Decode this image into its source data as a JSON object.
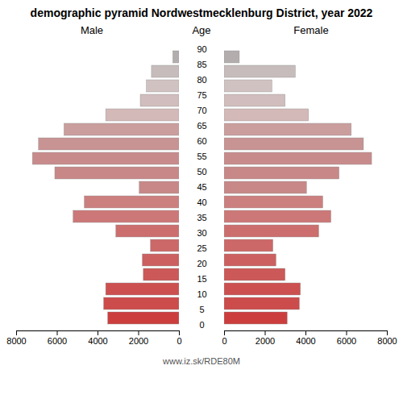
{
  "chart_data": {
    "type": "bar",
    "orientation": "horizontal",
    "title": "demographic pyramid Nordwestmecklenburg District, year 2022",
    "caption": "www.iz.sk/RDE80M",
    "y_label": "Age",
    "categories": [
      "90",
      "85",
      "80",
      "75",
      "70",
      "65",
      "60",
      "55",
      "50",
      "45",
      "40",
      "35",
      "30",
      "25",
      "20",
      "15",
      "10",
      "5",
      "0"
    ],
    "series": [
      {
        "name": "Male",
        "values": [
          300,
          1350,
          1600,
          1900,
          3600,
          5650,
          6900,
          7200,
          6100,
          1950,
          4650,
          5200,
          3100,
          1400,
          1800,
          1750,
          3600,
          3700,
          3500
        ]
      },
      {
        "name": "Female",
        "values": [
          750,
          3500,
          2350,
          3000,
          4150,
          6250,
          6850,
          7250,
          5650,
          4050,
          4850,
          5250,
          4650,
          2400,
          2550,
          3000,
          3750,
          3700,
          3100
        ]
      }
    ],
    "colors": [
      "#b3adad",
      "#c7bcbc",
      "#d1c2c2",
      "#d1bdbd",
      "#d4b9b9",
      "#cb9e9e",
      "#c89393",
      "#c88b8b",
      "#c88888",
      "#c88888",
      "#cc7f7f",
      "#cc7878",
      "#cc6e6e",
      "#cc6868",
      "#cc6060",
      "#cc5858",
      "#cc5050",
      "#cc4b4b",
      "#cc3e3e"
    ],
    "xlim": [
      0,
      8000
    ],
    "xticks": [
      0,
      2000,
      4000,
      6000,
      8000
    ]
  }
}
